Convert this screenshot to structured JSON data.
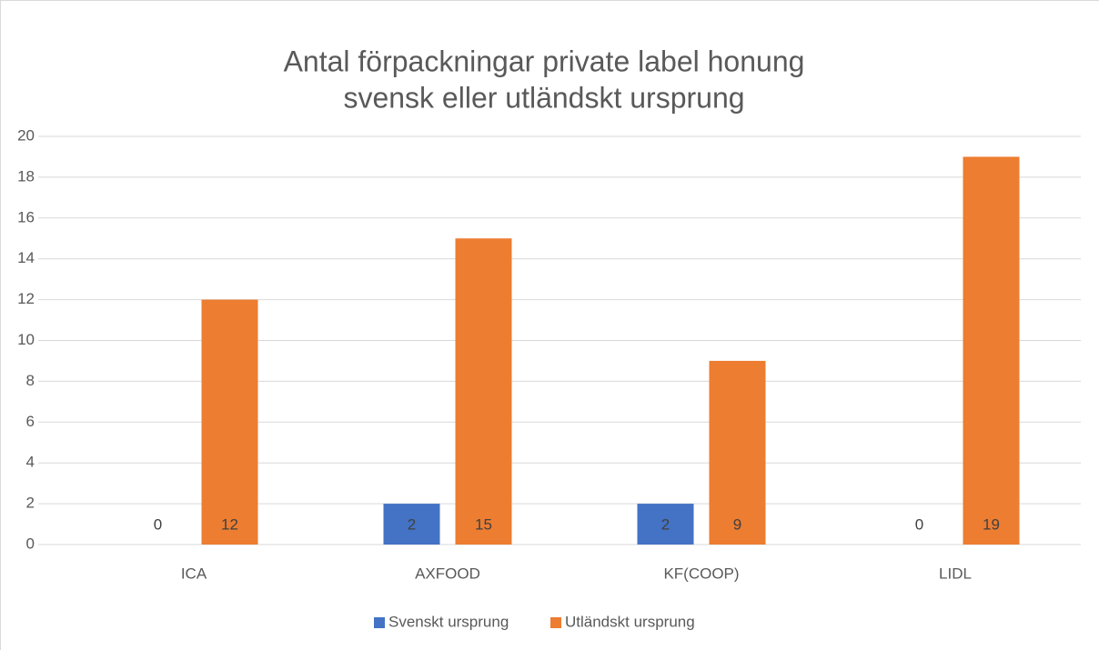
{
  "chart_data": {
    "type": "bar",
    "title": [
      "Antal förpackningar private label honung",
      "svensk eller utländskt ursprung"
    ],
    "categories": [
      "ICA",
      "AXFOOD",
      "KF(COOP)",
      "LIDL"
    ],
    "series": [
      {
        "name": "Svenskt ursprung",
        "color": "#4472c4",
        "values": [
          0,
          2,
          2,
          0
        ]
      },
      {
        "name": "Utländskt ursprung",
        "color": "#ed7d31",
        "values": [
          12,
          15,
          9,
          19
        ]
      }
    ],
    "ylim": [
      0,
      20
    ],
    "yticks": [
      0,
      2,
      4,
      6,
      8,
      10,
      12,
      14,
      16,
      18,
      20
    ],
    "grid": true,
    "legend": "bottom"
  }
}
